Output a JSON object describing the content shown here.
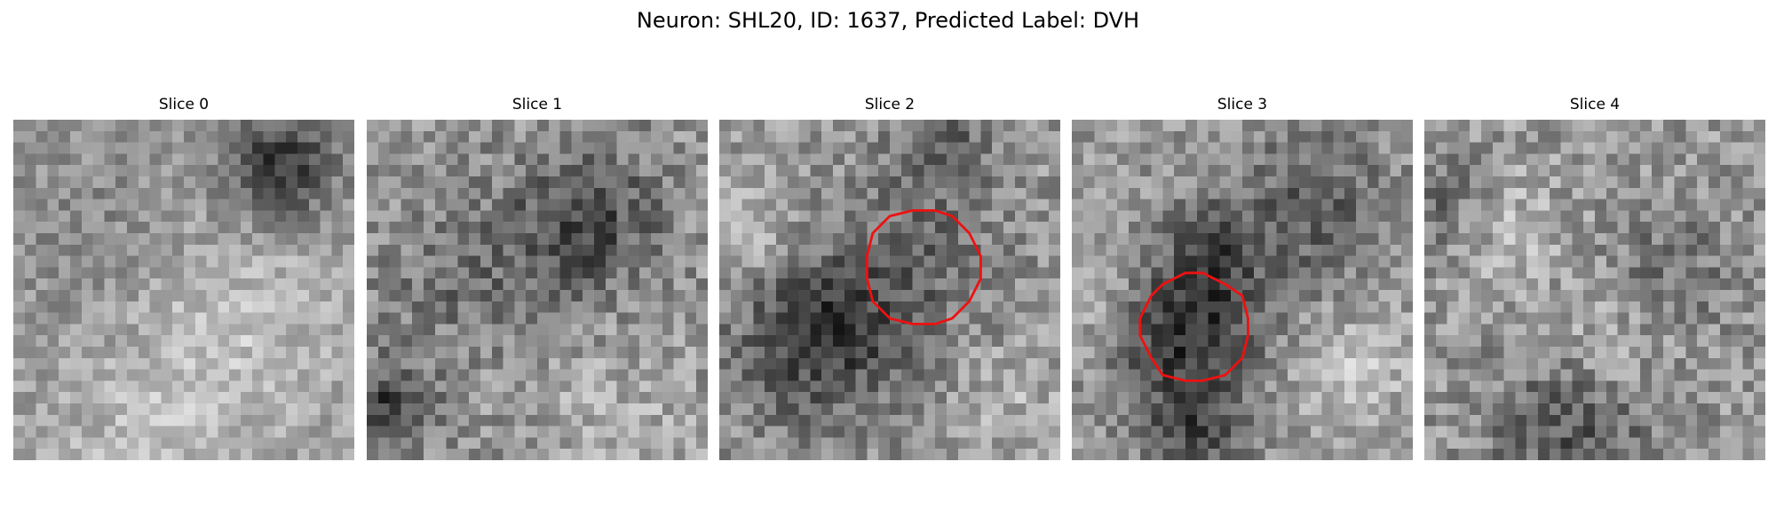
{
  "figure": {
    "title": "Neuron: SHL20, ID: 1637, Predicted Label: DVH"
  },
  "colors": {
    "roi": "#ee1111",
    "background": "#ffffff"
  },
  "panels": [
    {
      "title": "Slice 0",
      "grid": 30,
      "base_gray": 160,
      "noise": 34,
      "dark_spots": [
        {
          "cx": 23.5,
          "cy": 4.0,
          "r": 3.4,
          "depth": 110
        },
        {
          "cx": 7.0,
          "cy": 9.0,
          "r": 7.0,
          "depth": 22
        }
      ],
      "light_spots": [
        {
          "cx": 19.0,
          "cy": 18.0,
          "r": 6.0,
          "lift": 35
        },
        {
          "cx": 12.0,
          "cy": 28.0,
          "r": 5.0,
          "lift": 30
        }
      ],
      "roi": null
    },
    {
      "title": "Slice 1",
      "grid": 30,
      "base_gray": 148,
      "noise": 44,
      "dark_spots": [
        {
          "cx": 19.0,
          "cy": 9.0,
          "r": 4.6,
          "depth": 80
        },
        {
          "cx": 8.0,
          "cy": 14.0,
          "r": 4.5,
          "depth": 35
        },
        {
          "cx": 1.5,
          "cy": 25.5,
          "r": 2.8,
          "depth": 90
        }
      ],
      "light_spots": [
        {
          "cx": 22.0,
          "cy": 26.0,
          "r": 5.0,
          "lift": 28
        }
      ],
      "roi": null
    },
    {
      "title": "Slice 2",
      "grid": 30,
      "base_gray": 150,
      "noise": 42,
      "dark_spots": [
        {
          "cx": 9.0,
          "cy": 19.0,
          "r": 5.2,
          "depth": 95
        },
        {
          "cx": 18.0,
          "cy": 12.0,
          "r": 5.0,
          "depth": 40
        },
        {
          "cx": 19.5,
          "cy": 2.0,
          "r": 3.0,
          "depth": 55
        }
      ],
      "light_spots": [
        {
          "cx": 2.0,
          "cy": 10.0,
          "r": 3.0,
          "lift": 45
        },
        {
          "cx": 26.0,
          "cy": 25.0,
          "r": 4.0,
          "lift": 25
        }
      ],
      "roi": {
        "cx": 17.9,
        "cy": 13.0,
        "rx": 5.1,
        "ry": 5.3
      }
    },
    {
      "title": "Slice 3",
      "grid": 30,
      "base_gray": 150,
      "noise": 40,
      "dark_spots": [
        {
          "cx": 10.0,
          "cy": 18.5,
          "r": 4.6,
          "depth": 110
        },
        {
          "cx": 12.5,
          "cy": 11.0,
          "r": 2.6,
          "depth": 60
        },
        {
          "cx": 21.0,
          "cy": 8.0,
          "r": 5.0,
          "depth": 55
        },
        {
          "cx": 10.5,
          "cy": 28.0,
          "r": 3.0,
          "depth": 70
        }
      ],
      "light_spots": [
        {
          "cx": 2.0,
          "cy": 15.0,
          "r": 4.0,
          "lift": 35
        },
        {
          "cx": 24.5,
          "cy": 22.0,
          "r": 4.0,
          "lift": 40
        }
      ],
      "roi": {
        "cx": 10.8,
        "cy": 18.3,
        "rx": 4.8,
        "ry": 4.8
      }
    },
    {
      "title": "Slice 4",
      "grid": 30,
      "base_gray": 152,
      "noise": 44,
      "dark_spots": [
        {
          "cx": 13.0,
          "cy": 27.5,
          "r": 5.0,
          "depth": 65
        },
        {
          "cx": 2.0,
          "cy": 8.0,
          "r": 3.2,
          "depth": 45
        },
        {
          "cx": 22.0,
          "cy": 13.0,
          "r": 4.0,
          "depth": 35
        }
      ],
      "light_spots": [
        {
          "cx": 7.0,
          "cy": 10.0,
          "r": 3.5,
          "lift": 40
        },
        {
          "cx": 16.0,
          "cy": 20.0,
          "r": 3.5,
          "lift": 30
        }
      ],
      "roi": null
    }
  ]
}
